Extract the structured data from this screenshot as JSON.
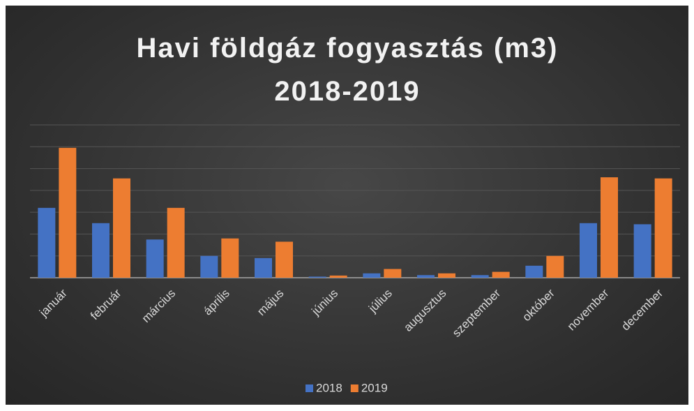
{
  "chart_data": {
    "type": "bar",
    "title": "Havi földgáz fogyasztás (m3) 2018-2019",
    "categories": [
      "január",
      "február",
      "március",
      "április",
      "május",
      "június",
      "július",
      "augusztus",
      "szeptember",
      "október",
      "november",
      "december"
    ],
    "series": [
      {
        "name": "2018",
        "color": "#4472c4",
        "values": [
          3.2,
          2.5,
          1.75,
          1.0,
          0.9,
          0.05,
          0.2,
          0.12,
          0.12,
          0.55,
          2.5,
          2.45
        ]
      },
      {
        "name": "2019",
        "color": "#ed7d31",
        "values": [
          5.95,
          4.55,
          3.2,
          1.8,
          1.65,
          0.1,
          0.4,
          0.2,
          0.27,
          1.0,
          4.6,
          4.55
        ]
      }
    ],
    "ylim": [
      0,
      7
    ],
    "yticks": [
      0,
      1,
      2,
      3,
      4,
      5,
      6,
      7
    ],
    "grid": true,
    "legend": "bottom"
  }
}
